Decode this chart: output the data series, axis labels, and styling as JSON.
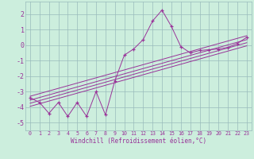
{
  "xlabel": "Windchill (Refroidissement éolien,°C)",
  "bg_color": "#cceedd",
  "grid_color": "#99bbbb",
  "line_color": "#993399",
  "x_data": [
    0,
    1,
    2,
    3,
    4,
    5,
    6,
    7,
    8,
    9,
    10,
    11,
    12,
    13,
    14,
    15,
    16,
    17,
    18,
    19,
    20,
    21,
    22,
    23
  ],
  "y_data": [
    -3.4,
    -3.7,
    -4.4,
    -3.7,
    -4.6,
    -3.7,
    -4.6,
    -3.0,
    -4.5,
    -2.3,
    -0.65,
    -0.25,
    0.35,
    1.55,
    2.25,
    1.2,
    -0.1,
    -0.5,
    -0.35,
    -0.3,
    -0.25,
    -0.15,
    0.1,
    0.5
  ],
  "ylim": [
    -5.5,
    2.8
  ],
  "xlim": [
    -0.5,
    23.5
  ],
  "yticks": [
    -5,
    -4,
    -3,
    -2,
    -1,
    0,
    1,
    2
  ],
  "xticks": [
    0,
    1,
    2,
    3,
    4,
    5,
    6,
    7,
    8,
    9,
    10,
    11,
    12,
    13,
    14,
    15,
    16,
    17,
    18,
    19,
    20,
    21,
    22,
    23
  ],
  "reg_lines": [
    {
      "x0": 0,
      "y0": -3.55,
      "x1": 23,
      "y1": 0.35
    },
    {
      "x0": 0,
      "y0": -3.75,
      "x1": 23,
      "y1": 0.15
    },
    {
      "x0": 0,
      "y0": -3.95,
      "x1": 23,
      "y1": -0.05
    },
    {
      "x0": 0,
      "y0": -3.3,
      "x1": 23,
      "y1": 0.6
    }
  ]
}
